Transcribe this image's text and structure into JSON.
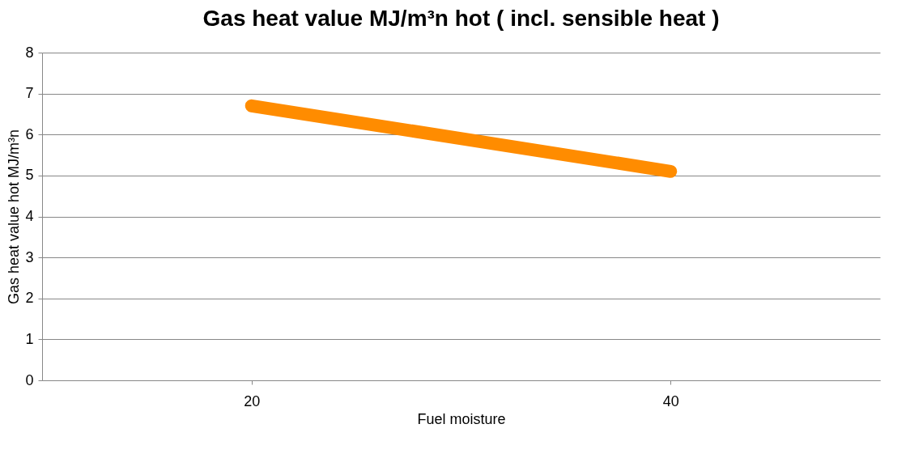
{
  "chart_data": {
    "type": "line",
    "title": "Gas heat value MJ/m³n hot ( incl. sensible heat )",
    "xlabel": "Fuel moisture",
    "ylabel": "Gas heat value hot MJ/m³n",
    "categories": [
      "20",
      "40"
    ],
    "series": [
      {
        "color": "#ff8c00",
        "values": [
          6.7,
          5.1
        ]
      }
    ],
    "ylim": [
      0,
      8
    ],
    "yticks": [
      0,
      1,
      2,
      3,
      4,
      5,
      6,
      7,
      8
    ],
    "grid": "y",
    "line_style": "solid"
  }
}
